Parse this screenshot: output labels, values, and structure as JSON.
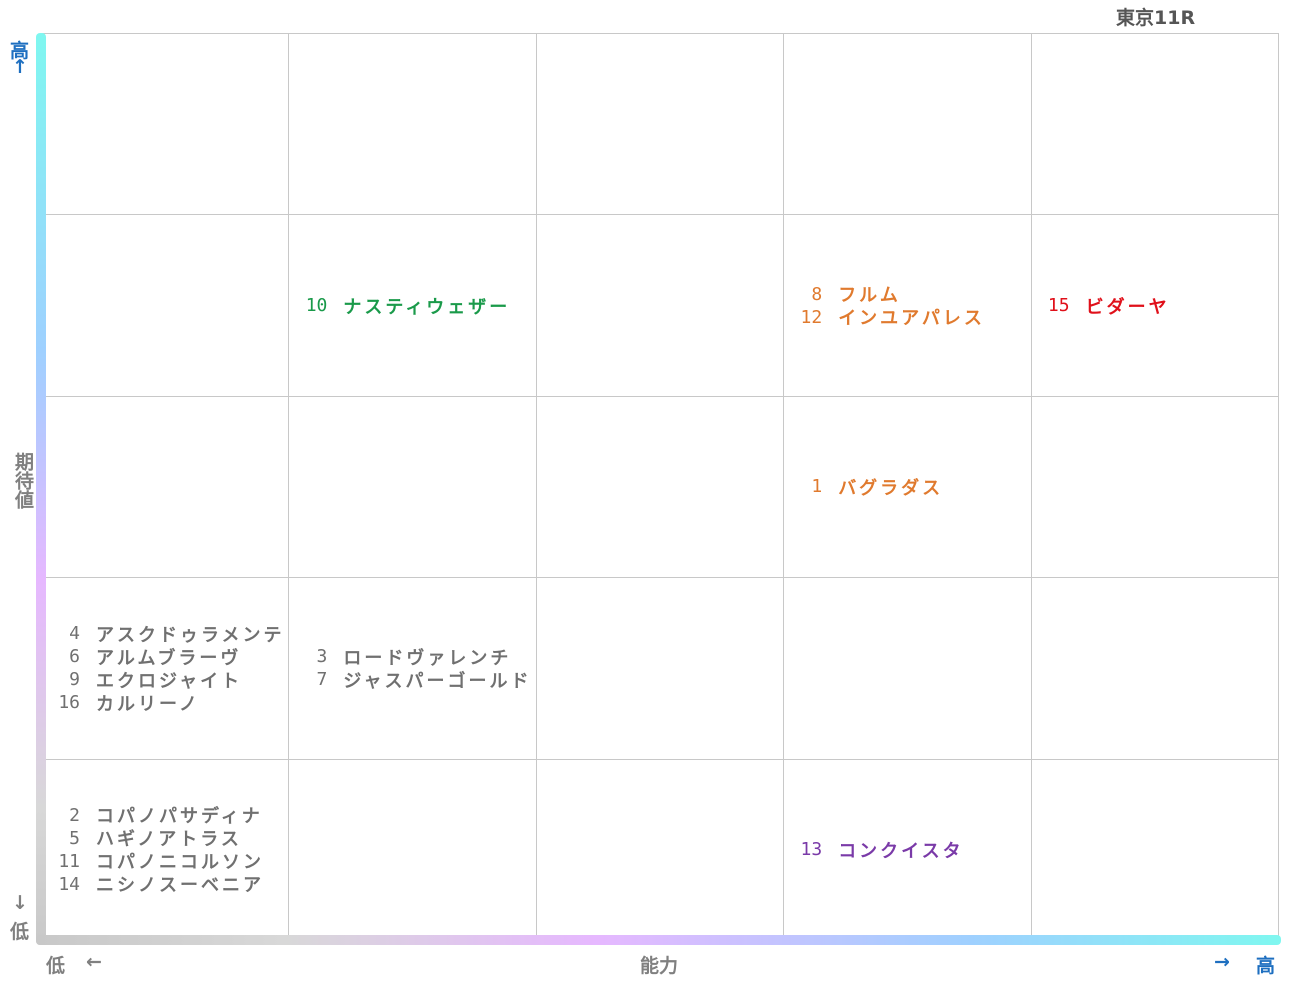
{
  "title": "東京11R",
  "y_axis": {
    "high": "高",
    "high_arrow": "↑",
    "label": "期待値",
    "low_arrow": "↓",
    "low": "低"
  },
  "x_axis": {
    "low": "低",
    "low_arrow": "←",
    "label": "能力",
    "high_arrow": "→",
    "high": "高"
  },
  "grid": {
    "rows": [
      [
        null,
        null,
        null,
        null,
        null
      ],
      [
        null,
        {
          "color": "#1a9a4a",
          "horses": [
            {
              "number": 10,
              "name": "ナスティウェザー"
            }
          ]
        },
        null,
        {
          "color": "#e07a2e",
          "horses": [
            {
              "number": 8,
              "name": "フルム"
            },
            {
              "number": 12,
              "name": "インユアパレス"
            }
          ]
        },
        {
          "color": "#e0101a",
          "horses": [
            {
              "number": 15,
              "name": "ビダーヤ"
            }
          ]
        }
      ],
      [
        null,
        null,
        null,
        {
          "color": "#e07a2e",
          "horses": [
            {
              "number": 1,
              "name": "バグラダス"
            }
          ]
        },
        null
      ],
      [
        {
          "color": "#707070",
          "horses": [
            {
              "number": 4,
              "name": "アスクドゥラメンテ"
            },
            {
              "number": 6,
              "name": "アルムブラーヴ"
            },
            {
              "number": 9,
              "name": "エクロジャイト"
            },
            {
              "number": 16,
              "name": "カルリーノ"
            }
          ]
        },
        {
          "color": "#707070",
          "horses": [
            {
              "number": 3,
              "name": "ロードヴァレンチ"
            },
            {
              "number": 7,
              "name": "ジャスパーゴールド"
            }
          ]
        },
        null,
        null,
        null
      ],
      [
        {
          "color": "#707070",
          "horses": [
            {
              "number": 2,
              "name": "コパノパサディナ"
            },
            {
              "number": 5,
              "name": "ハギノアトラス"
            },
            {
              "number": 11,
              "name": "コパノニコルソン"
            },
            {
              "number": 14,
              "name": "ニシノスーベニア"
            }
          ]
        },
        null,
        null,
        {
          "color": "#7a3aa8",
          "horses": [
            {
              "number": 13,
              "name": "コンクイスタ"
            }
          ]
        },
        null
      ]
    ]
  }
}
